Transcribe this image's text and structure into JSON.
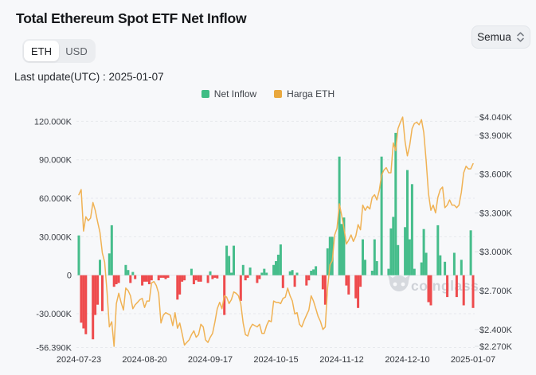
{
  "header": {
    "title": "Total Ethereum Spot ETF Net Inflow",
    "toggle": [
      "ETH",
      "USD"
    ],
    "toggle_selected": "ETH",
    "range_select": "Semua",
    "last_update": "Last update(UTC) : 2025-01-07"
  },
  "legend": [
    {
      "label": "Net Inflow",
      "color": "#3fbd85"
    },
    {
      "label": "Harga ETH",
      "color": "#e9a83e"
    }
  ],
  "watermark": "coinglass",
  "colors": {
    "inflow_positive": "#46bd8b",
    "inflow_negative": "#ee4b4d",
    "price_line": "#f0b254",
    "grid": "#e7e9ed",
    "axis_text": "#3b3f46",
    "background": "#f7f8fa",
    "watermark": "#c7cbd1"
  },
  "chart_data": {
    "type": "bar+line",
    "title": "Total Ethereum Spot ETF Net Inflow",
    "bar_series_name": "Net Inflow",
    "line_series_name": "Harga ETH",
    "start_date": "2024-07-23",
    "end_date": "2025-01-07",
    "x_tick_labels": [
      "2024-07-23",
      "2024-08-20",
      "2024-09-17",
      "2024-10-15",
      "2024-11-12",
      "2024-12-10",
      "2025-01-07"
    ],
    "left_axis": {
      "unit": "K ETH",
      "tick_labels": [
        "120.000K",
        "90.000K",
        "60.000K",
        "30.000K",
        "0",
        "-30.000K"
      ],
      "tick_values": [
        120,
        90,
        60,
        30,
        0,
        -30
      ],
      "floor_label": "-56.390K",
      "floor_value": -56.39,
      "top_value": 120
    },
    "right_axis": {
      "unit": "$K",
      "tick_labels": [
        "$4.040K",
        "$3.900K",
        "$3.600K",
        "$3.300K",
        "$3.000K",
        "$2.700K",
        "$2.400K",
        "$2.270K"
      ],
      "tick_values": [
        4.04,
        3.9,
        3.6,
        3.3,
        3.0,
        2.7,
        2.4,
        2.27
      ],
      "min": 2.27,
      "max": 4.04
    },
    "net_inflow_k": [
      [
        "2024-07-23",
        31
      ],
      [
        "2024-07-24",
        -37
      ],
      [
        "2024-07-25",
        -41.5
      ],
      [
        "2024-07-26",
        -46
      ],
      [
        "2024-07-29",
        -50
      ],
      [
        "2024-07-30",
        -31
      ],
      [
        "2024-07-31",
        -23
      ],
      [
        "2024-08-01",
        12
      ],
      [
        "2024-08-02",
        -28
      ],
      [
        "2024-08-05",
        17
      ],
      [
        "2024-08-06",
        39
      ],
      [
        "2024-08-07",
        -9
      ],
      [
        "2024-08-08",
        -7
      ],
      [
        "2024-08-09",
        -6
      ],
      [
        "2024-08-12",
        8
      ],
      [
        "2024-08-13",
        4
      ],
      [
        "2024-08-14",
        -6
      ],
      [
        "2024-08-15",
        2.5
      ],
      [
        "2024-08-16",
        -3
      ],
      [
        "2024-08-19",
        -8
      ],
      [
        "2024-08-20",
        -5
      ],
      [
        "2024-08-21",
        -5
      ],
      [
        "2024-08-22",
        -7
      ],
      [
        "2024-08-23",
        -4
      ],
      [
        "2024-08-26",
        -4
      ],
      [
        "2024-08-27",
        -2
      ],
      [
        "2024-08-28",
        -2
      ],
      [
        "2024-08-29",
        -3
      ],
      [
        "2024-08-30",
        -2
      ],
      [
        "2024-09-03",
        -19
      ],
      [
        "2024-09-04",
        -15
      ],
      [
        "2024-09-05",
        -5
      ],
      [
        "2024-09-06",
        -4
      ],
      [
        "2024-09-09",
        5
      ],
      [
        "2024-09-10",
        -7
      ],
      [
        "2024-09-11",
        -4
      ],
      [
        "2024-09-12",
        -5
      ],
      [
        "2024-09-13",
        -5
      ],
      [
        "2024-09-16",
        -6
      ],
      [
        "2024-09-17",
        3
      ],
      [
        "2024-09-18",
        -3
      ],
      [
        "2024-09-19",
        -2
      ],
      [
        "2024-09-20",
        -2.5
      ],
      [
        "2024-09-23",
        -31
      ],
      [
        "2024-09-24",
        23
      ],
      [
        "2024-09-25",
        15
      ],
      [
        "2024-09-26",
        2
      ],
      [
        "2024-09-27",
        23
      ],
      [
        "2024-09-30",
        -20
      ],
      [
        "2024-10-01",
        8
      ],
      [
        "2024-10-02",
        -4
      ],
      [
        "2024-10-03",
        -2
      ],
      [
        "2024-10-04",
        6
      ],
      [
        "2024-10-07",
        -6
      ],
      [
        "2024-10-08",
        -3
      ],
      [
        "2024-10-09",
        2
      ],
      [
        "2024-10-10",
        5
      ],
      [
        "2024-10-11",
        2
      ],
      [
        "2024-10-14",
        8
      ],
      [
        "2024-10-15",
        11
      ],
      [
        "2024-10-16",
        16
      ],
      [
        "2024-10-17",
        24
      ],
      [
        "2024-10-18",
        -10
      ],
      [
        "2024-10-21",
        3
      ],
      [
        "2024-10-22",
        4
      ],
      [
        "2024-10-23",
        -9
      ],
      [
        "2024-10-24",
        2
      ],
      [
        "2024-10-28",
        -8
      ],
      [
        "2024-10-29",
        -4
      ],
      [
        "2024-10-30",
        3.5
      ],
      [
        "2024-10-31",
        4.5
      ],
      [
        "2024-11-01",
        7
      ],
      [
        "2024-11-04",
        -11
      ],
      [
        "2024-11-05",
        -23
      ],
      [
        "2024-11-06",
        21
      ],
      [
        "2024-11-07",
        30
      ],
      [
        "2024-11-08",
        30
      ],
      [
        "2024-11-11",
        92.5
      ],
      [
        "2024-11-12",
        40
      ],
      [
        "2024-11-13",
        45
      ],
      [
        "2024-11-14",
        -8
      ],
      [
        "2024-11-15",
        -15
      ],
      [
        "2024-11-18",
        -18
      ],
      [
        "2024-11-19",
        -25.5
      ],
      [
        "2024-11-20",
        -9
      ],
      [
        "2024-11-21",
        28
      ],
      [
        "2024-11-22",
        12
      ],
      [
        "2024-11-25",
        3.5
      ],
      [
        "2024-11-26",
        28
      ],
      [
        "2024-11-27",
        11
      ],
      [
        "2024-11-29",
        92.5
      ],
      [
        "2024-12-02",
        5
      ],
      [
        "2024-12-03",
        36.5
      ],
      [
        "2024-12-04",
        45.5
      ],
      [
        "2024-12-05",
        111
      ],
      [
        "2024-12-06",
        23.5
      ],
      [
        "2024-12-09",
        37.5
      ],
      [
        "2024-12-10",
        82
      ],
      [
        "2024-12-11",
        28
      ],
      [
        "2024-12-12",
        71
      ],
      [
        "2024-12-13",
        5
      ],
      [
        "2024-12-16",
        10
      ],
      [
        "2024-12-17",
        36
      ],
      [
        "2024-12-18",
        17.5
      ],
      [
        "2024-12-19",
        -21
      ],
      [
        "2024-12-20",
        -23.5
      ],
      [
        "2024-12-23",
        39
      ],
      [
        "2024-12-24",
        15.5
      ],
      [
        "2024-12-26",
        10.5
      ],
      [
        "2024-12-27",
        -17
      ],
      [
        "2024-12-30",
        17.5
      ],
      [
        "2024-12-31",
        -17
      ],
      [
        "2025-01-02",
        12
      ],
      [
        "2025-01-03",
        -23.5
      ],
      [
        "2025-01-06",
        35
      ],
      [
        "2025-01-07",
        -25.5
      ]
    ],
    "price_start_date": "2024-07-23",
    "price_usd_k": [
      3.44,
      3.48,
      3.16,
      3.27,
      3.24,
      3.26,
      3.38,
      3.32,
      3.23,
      3.15,
      2.99,
      2.92,
      2.69,
      2.42,
      2.46,
      2.27,
      2.6,
      2.68,
      2.61,
      2.55,
      2.72,
      2.7,
      2.66,
      2.56,
      2.59,
      2.61,
      2.63,
      2.64,
      2.57,
      2.62,
      2.62,
      2.76,
      2.77,
      2.74,
      2.68,
      2.45,
      2.51,
      2.53,
      2.52,
      2.51,
      2.43,
      2.53,
      2.41,
      2.45,
      2.37,
      2.28,
      2.3,
      2.32,
      2.36,
      2.39,
      2.34,
      2.36,
      2.44,
      2.42,
      2.32,
      2.3,
      2.34,
      2.37,
      2.46,
      2.56,
      2.61,
      2.56,
      2.66,
      2.65,
      2.6,
      2.63,
      2.69,
      2.68,
      2.66,
      2.6,
      2.45,
      2.36,
      2.35,
      2.41,
      2.44,
      2.43,
      2.42,
      2.44,
      2.37,
      2.37,
      2.43,
      2.47,
      2.46,
      2.62,
      2.61,
      2.61,
      2.6,
      2.64,
      2.65,
      2.72,
      2.66,
      2.62,
      2.52,
      2.53,
      2.44,
      2.42,
      2.47,
      2.51,
      2.55,
      2.66,
      2.62,
      2.56,
      2.5,
      2.46,
      2.4,
      2.42,
      2.72,
      2.9,
      2.93,
      3.13,
      3.18,
      3.37,
      3.28,
      3.18,
      3.06,
      3.09,
      3.13,
      3.08,
      3.12,
      3.21,
      3.17,
      3.36,
      3.32,
      3.35,
      3.33,
      3.42,
      3.44,
      3.4,
      3.47,
      3.59,
      3.63,
      3.65,
      3.61,
      3.61,
      3.84,
      3.78,
      3.95,
      4.0,
      4.04,
      3.85,
      3.74,
      3.82,
      3.95,
      3.99,
      4.0,
      3.98,
      4.02,
      3.92,
      3.7,
      3.45,
      3.32,
      3.36,
      3.3,
      3.42,
      3.48,
      3.5,
      3.34,
      3.36,
      3.4,
      3.36,
      3.36,
      3.34,
      3.36,
      3.46,
      3.61,
      3.66,
      3.64,
      3.64,
      3.68
    ]
  }
}
